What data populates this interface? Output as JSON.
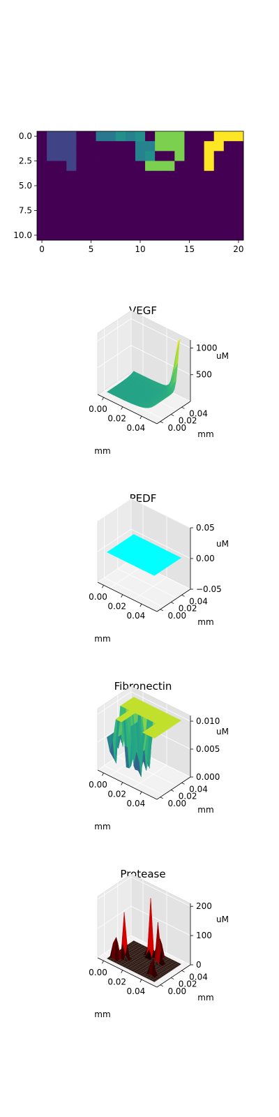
{
  "colors": {
    "bg": "#ffffff",
    "pane_left": "#ebebeb",
    "pane_right": "#e3e3e3",
    "pane_floor": "#f2f2f2",
    "grid": "#ffffff",
    "axis": "#000000"
  },
  "chart_data": [
    {
      "type": "heatmap",
      "title": "",
      "colormap": "viridis",
      "xlim": [
        -0.5,
        20.5
      ],
      "ylim": [
        10.5,
        -0.5
      ],
      "x_ticks": [
        "0",
        "5",
        "10",
        "15",
        "20"
      ],
      "y_ticks": [
        "0.0",
        "2.5",
        "5.0",
        "7.5",
        "10.0"
      ],
      "grid_on": false,
      "values": [
        [
          0,
          0.2,
          0.2,
          0.2,
          0,
          0,
          0.4,
          0.4,
          0.5,
          0.45,
          0.5,
          0,
          0.8,
          0.8,
          0.8,
          0,
          0,
          0,
          1,
          1,
          1
        ],
        [
          0,
          0.2,
          0.2,
          0.2,
          0,
          0,
          0,
          0,
          0,
          0,
          0.45,
          0.45,
          0.8,
          0.8,
          0.8,
          0,
          0,
          1,
          1,
          0,
          0
        ],
        [
          0,
          0.2,
          0.2,
          0.2,
          0,
          0,
          0,
          0,
          0,
          0,
          0.45,
          0.5,
          0,
          0,
          0.8,
          0,
          0,
          1,
          0,
          0,
          0
        ],
        [
          0,
          0,
          0,
          0.2,
          0,
          0,
          0,
          0,
          0,
          0,
          0,
          0.8,
          0.8,
          0.8,
          0,
          0,
          0,
          1,
          0,
          0,
          0
        ],
        [
          0,
          0,
          0,
          0,
          0,
          0,
          0,
          0,
          0,
          0,
          0,
          0,
          0,
          0,
          0,
          0,
          0,
          0,
          0,
          0,
          0
        ],
        [
          0,
          0,
          0,
          0,
          0,
          0,
          0,
          0,
          0,
          0,
          0,
          0,
          0,
          0,
          0,
          0,
          0,
          0,
          0,
          0,
          0
        ],
        [
          0,
          0,
          0,
          0,
          0,
          0,
          0,
          0,
          0,
          0,
          0,
          0,
          0,
          0,
          0,
          0,
          0,
          0,
          0,
          0,
          0
        ],
        [
          0,
          0,
          0,
          0,
          0,
          0,
          0,
          0,
          0,
          0,
          0,
          0,
          0,
          0,
          0,
          0,
          0,
          0,
          0,
          0,
          0
        ],
        [
          0,
          0,
          0,
          0,
          0,
          0,
          0,
          0,
          0,
          0,
          0,
          0,
          0,
          0,
          0,
          0,
          0,
          0,
          0,
          0,
          0
        ],
        [
          0,
          0,
          0,
          0,
          0,
          0,
          0,
          0,
          0,
          0,
          0,
          0,
          0,
          0,
          0,
          0,
          0,
          0,
          0,
          0,
          0
        ],
        [
          0,
          0,
          0,
          0,
          0,
          0,
          0,
          0,
          0,
          0,
          0,
          0,
          0,
          0,
          0,
          0,
          0,
          0,
          0,
          0,
          0
        ]
      ]
    },
    {
      "type": "surface3d",
      "title": "VEGF",
      "xlabel": "mm",
      "ylabel": "mm",
      "zlabel": "uM",
      "x_ticks": [
        "0.00",
        "0.02",
        "0.04"
      ],
      "y_ticks": [
        "0.00",
        "0.02",
        "0.04"
      ],
      "z_ticks": [
        "500",
        "1000"
      ],
      "xlim": [
        0,
        0.05
      ],
      "ylim": [
        0,
        0.05
      ],
      "zlim": [
        0,
        1150
      ],
      "surface": {
        "kind": "peak",
        "base": 60,
        "edge": 180,
        "peak": 1100,
        "peak_at": [
          0.05,
          0.05
        ],
        "colormap": "viridis"
      }
    },
    {
      "type": "surface3d",
      "title": "PEDF",
      "xlabel": "mm",
      "ylabel": "mm",
      "zlabel": "uM",
      "x_ticks": [
        "0.00",
        "0.02",
        "0.04"
      ],
      "y_ticks": [
        "0.00",
        "0.02",
        "0.04"
      ],
      "z_ticks": [
        "−0.05",
        "0.00",
        "0.05"
      ],
      "xlim": [
        0,
        0.05
      ],
      "ylim": [
        0,
        0.05
      ],
      "zlim": [
        -0.05,
        0.05
      ],
      "surface": {
        "kind": "flat",
        "value": 0,
        "color": "#00ffff"
      }
    },
    {
      "type": "surface3d",
      "title": "Fibronectin",
      "xlabel": "mm",
      "ylabel": "mm",
      "zlabel": "uM",
      "x_ticks": [
        "0.00",
        "0.02",
        "0.04"
      ],
      "y_ticks": [
        "0.00",
        "0.02",
        "0.04"
      ],
      "z_ticks": [
        "0.000",
        "0.005",
        "0.010"
      ],
      "xlim": [
        0,
        0.05
      ],
      "ylim": [
        0,
        0.05
      ],
      "zlim": [
        0,
        0.011
      ],
      "surface": {
        "kind": "plateau",
        "high": 0.01,
        "low": 0,
        "colormap": "viridis"
      }
    },
    {
      "type": "surface3d",
      "title": "Protease",
      "xlabel": "mm",
      "ylabel": "mm",
      "zlabel": "uM",
      "x_ticks": [
        "0.00",
        "0.02",
        "0.04"
      ],
      "y_ticks": [
        "0.00",
        "0.02",
        "0.04"
      ],
      "z_ticks": [
        "0",
        "100",
        "200"
      ],
      "xlim": [
        0,
        0.05
      ],
      "ylim": [
        0,
        0.05
      ],
      "zlim": [
        0,
        210
      ],
      "surface": {
        "kind": "spikes",
        "base": 0,
        "peak": 200,
        "colormap": "hot"
      }
    }
  ]
}
